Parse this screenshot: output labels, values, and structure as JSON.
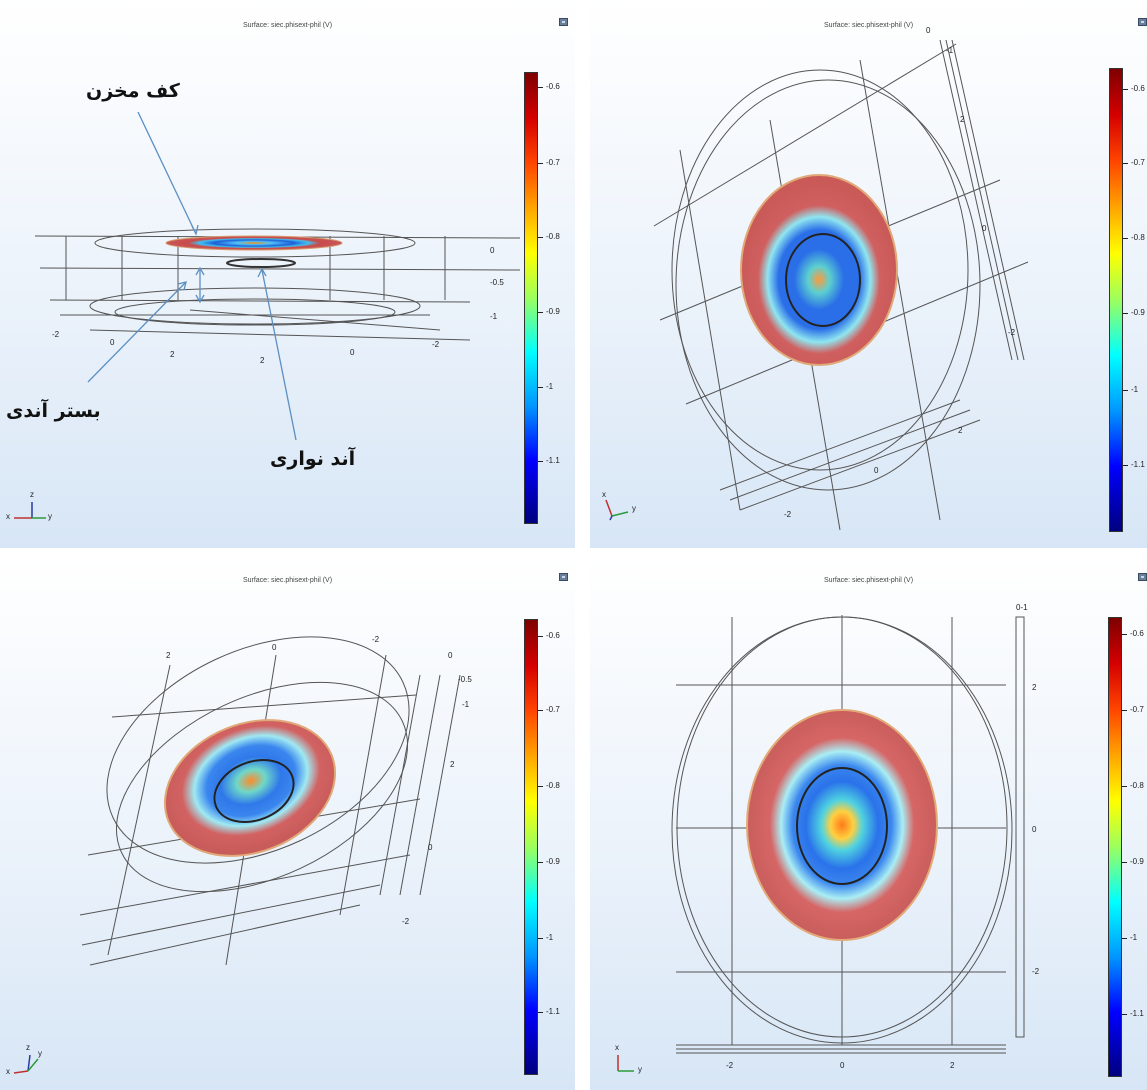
{
  "surface_title": "Surface: siec.phisext-phil (V)",
  "colorbar_ticks": [
    "-0.6",
    "-0.7",
    "-0.8",
    "-0.9",
    "-1",
    "-1.1"
  ],
  "colormap": [
    "#7f0000",
    "#d40000",
    "#ff4500",
    "#ffa500",
    "#ffff00",
    "#9cff5e",
    "#00ffff",
    "#0096ff",
    "#0000ff",
    "#00007f"
  ],
  "annotations": {
    "tank_floor": "کف مخزن",
    "anode_bed": "بستر آندی",
    "ribbon_anode": "آند نواری"
  },
  "triad": {
    "x": "x",
    "y": "y",
    "z": "z"
  },
  "panel1_ticks": {
    "z": [
      "0",
      "-0.5",
      "-1"
    ],
    "axis": [
      "-2",
      "0",
      "2",
      "2",
      "0",
      "-2"
    ]
  },
  "panel2_ticks": [
    "0",
    "-1",
    "2",
    "0",
    "-2",
    "2",
    "0",
    "-2"
  ],
  "panel3_ticks": [
    "2",
    "0",
    "-2",
    "0",
    "-0.5",
    "-1",
    "2",
    "0",
    "-2"
  ],
  "panel4_ticks": {
    "right": [
      "0-1",
      "2",
      "0",
      "-2"
    ],
    "bottom": [
      "-2",
      "0",
      "2"
    ]
  }
}
